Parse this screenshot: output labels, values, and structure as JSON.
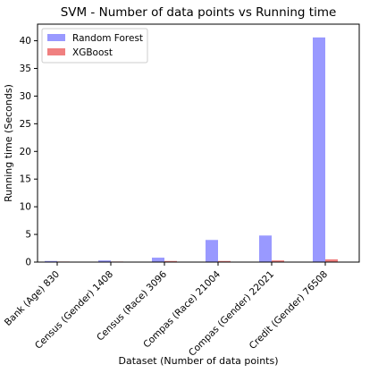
{
  "chart_data": {
    "type": "bar",
    "title": "SVM - Number of data points vs Running time",
    "xlabel": "Dataset (Number of data points)",
    "ylabel": "Running time (Seconds)",
    "categories": [
      "Bank (Age) 830",
      "Census (Gender) 1408",
      "Census (Race) 3096",
      "Compas (Race) 21004",
      "Compas (Gender) 22021",
      "Credit (Gender) 76508"
    ],
    "series": [
      {
        "name": "Random Forest",
        "color": "#9999ff",
        "values": [
          0.2,
          0.3,
          0.8,
          4.0,
          4.8,
          40.6
        ]
      },
      {
        "name": "XGBoost",
        "color": "#f08080",
        "values": [
          0.1,
          0.1,
          0.2,
          0.2,
          0.3,
          0.5
        ]
      }
    ],
    "ylim": [
      0,
      43
    ],
    "yticks": [
      0,
      5,
      10,
      15,
      20,
      25,
      30,
      35,
      40
    ],
    "legend": "top-left",
    "grid": false
  }
}
